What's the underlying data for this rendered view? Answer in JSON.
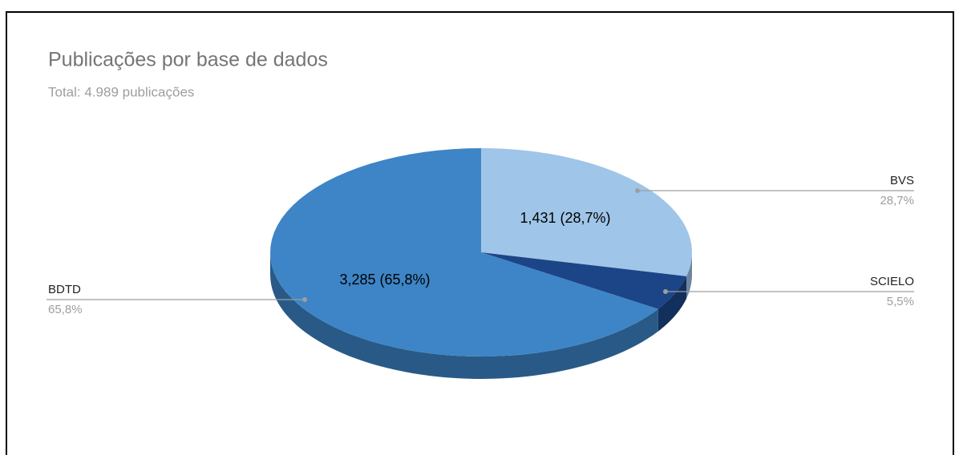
{
  "chart_data": {
    "type": "pie3d",
    "title": "Publicações por base de dados",
    "subtitle": "Total: 4.989 publicações",
    "categories": [
      "BVS",
      "SCIELO",
      "BDTD"
    ],
    "values": [
      1431,
      273,
      3285
    ],
    "value_labels": [
      "1,431 (28,7%)",
      null,
      "3,285 (65,8%)"
    ],
    "percentages": [
      28.7,
      5.5,
      65.8
    ],
    "percentage_labels": [
      "28,7%",
      "5,5%",
      "65,8%"
    ],
    "colors": [
      "#9fc5e8",
      "#1c4587",
      "#3d85c6"
    ]
  }
}
